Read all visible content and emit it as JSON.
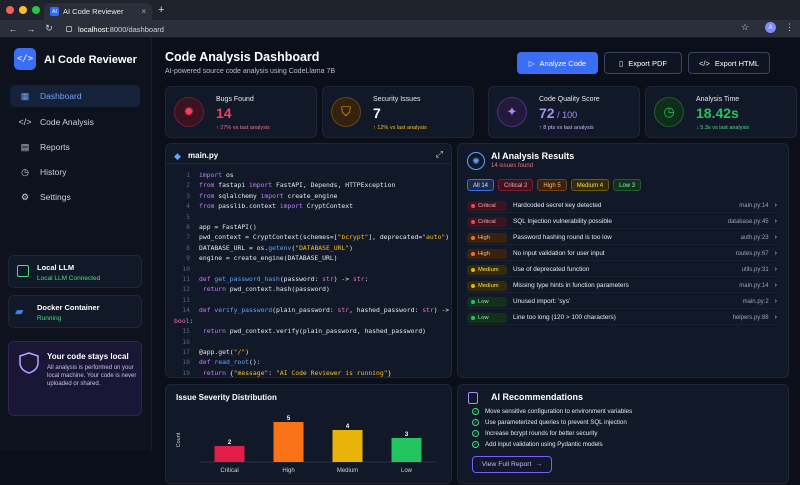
{
  "browser": {
    "tab_title": "AI Code Reviewer",
    "tab_favicon": "AI",
    "url_host": "localhost",
    "url_rest": ":8000/dashboard",
    "avatar": "A"
  },
  "sidebar": {
    "logo_glyph": "</>",
    "app_name": "AI Code Reviewer",
    "items": [
      {
        "label": "Dashboard",
        "icon": "grid-icon"
      },
      {
        "label": "Code Analysis",
        "icon": "code-icon"
      },
      {
        "label": "Reports",
        "icon": "document-icon"
      },
      {
        "label": "History",
        "icon": "clock-icon"
      },
      {
        "label": "Settings",
        "icon": "gear-icon"
      }
    ],
    "llm": {
      "title": "Local LLM",
      "status": "Local LLM Connected"
    },
    "docker": {
      "title": "Docker Container",
      "status": "Running"
    },
    "privacy": {
      "title": "Your code stays local",
      "desc": "All analysis is performed on your local machine. Your code is never uploaded or shared."
    }
  },
  "header": {
    "title": "Code Analysis Dashboard",
    "subtitle": "AI-powered source code analysis using CodeLlama 7B",
    "analyze_label": "Analyze Code",
    "pdf_label": "Export PDF",
    "html_label": "Export HTML"
  },
  "stats": [
    {
      "label": "Bugs Found",
      "value": "14",
      "change": "↑ 27% vs last analysis",
      "color": "#f43f5e"
    },
    {
      "label": "Security Issues",
      "value": "7",
      "change": "↑ 12% vs last analysis",
      "color": "#f59e0b"
    },
    {
      "label": "Code Quality Score",
      "value": "72",
      "value_suffix": " / 100",
      "change": "↑ 8 pts vs last analysis",
      "color": "#a78bfa"
    },
    {
      "label": "Analysis Time",
      "value": "18.42s",
      "change": "↓ 5.3s vs last analysis",
      "color": "#22c55e"
    }
  ],
  "editor": {
    "filename": "main.py"
  },
  "results": {
    "title": "AI Analysis Results",
    "subtitle": "14 issues found",
    "filters": [
      {
        "label": "All",
        "count": "14"
      },
      {
        "label": "Critical",
        "count": "2"
      },
      {
        "label": "High",
        "count": "5"
      },
      {
        "label": "Medium",
        "count": "4"
      },
      {
        "label": "Low",
        "count": "3"
      }
    ],
    "issues": [
      {
        "severity": "Critical",
        "message": "Hardcoded secret key detected",
        "location": "main.py:14"
      },
      {
        "severity": "Critical",
        "message": "SQL Injection vulnerability possible",
        "location": "database.py:45"
      },
      {
        "severity": "High",
        "message": "Password hashing round is too low",
        "location": "auth.py:23"
      },
      {
        "severity": "High",
        "message": "No input validation for user input",
        "location": "routes.py:67"
      },
      {
        "severity": "Medium",
        "message": "Use of deprecated function",
        "location": "utils.py:31"
      },
      {
        "severity": "Medium",
        "message": "Missing type hints in function parameters",
        "location": "main.py:14"
      },
      {
        "severity": "Low",
        "message": "Unused import: 'sys'",
        "location": "main.py:2"
      },
      {
        "severity": "Low",
        "message": "Line too long (120 > 100 characters)",
        "location": "helpers.py:88"
      }
    ]
  },
  "recommendations": {
    "title": "AI Recommendations",
    "items": [
      "Move sensitive configuration to environment variables",
      "Use parameterized queries to prevent SQL injection",
      "Increase bcrypt rounds for better security",
      "Add input validation using Pydantic models"
    ],
    "button": "View Full Report"
  },
  "chart_data": {
    "type": "bar",
    "title": "Issue Severity Distribution",
    "ylabel": "Count",
    "categories": [
      "Critical",
      "High",
      "Medium",
      "Low"
    ],
    "values": [
      2,
      5,
      4,
      3
    ],
    "colors": [
      "#e11d48",
      "#f97316",
      "#eab308",
      "#22c55e"
    ],
    "ylim": [
      0,
      5
    ]
  }
}
